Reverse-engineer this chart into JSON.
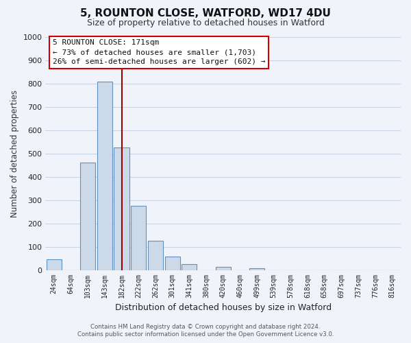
{
  "title": "5, ROUNTON CLOSE, WATFORD, WD17 4DU",
  "subtitle": "Size of property relative to detached houses in Watford",
  "xlabel": "Distribution of detached houses by size in Watford",
  "ylabel": "Number of detached properties",
  "footer_line1": "Contains HM Land Registry data © Crown copyright and database right 2024.",
  "footer_line2": "Contains public sector information licensed under the Open Government Licence v3.0.",
  "bar_labels": [
    "24sqm",
    "64sqm",
    "103sqm",
    "143sqm",
    "182sqm",
    "222sqm",
    "262sqm",
    "301sqm",
    "341sqm",
    "380sqm",
    "420sqm",
    "460sqm",
    "499sqm",
    "539sqm",
    "578sqm",
    "618sqm",
    "658sqm",
    "697sqm",
    "737sqm",
    "776sqm",
    "816sqm"
  ],
  "bar_values": [
    46,
    0,
    460,
    810,
    525,
    275,
    125,
    58,
    25,
    0,
    12,
    0,
    8,
    0,
    0,
    0,
    0,
    0,
    0,
    0,
    0
  ],
  "bar_color": "#ccd9e8",
  "bar_edge_color": "#6090c0",
  "vline_x_index": 4,
  "vline_color": "#990000",
  "ylim": [
    0,
    1000
  ],
  "yticks": [
    0,
    100,
    200,
    300,
    400,
    500,
    600,
    700,
    800,
    900,
    1000
  ],
  "annotation_title": "5 ROUNTON CLOSE: 171sqm",
  "annotation_line1": "← 73% of detached houses are smaller (1,703)",
  "annotation_line2": "26% of semi-detached houses are larger (602) →",
  "annotation_box_color": "#ffffff",
  "annotation_box_edge": "#cc0000",
  "grid_color": "#c8d4e4",
  "bg_color": "#f0f4fa",
  "plot_bg_color": "#f0f4fa"
}
